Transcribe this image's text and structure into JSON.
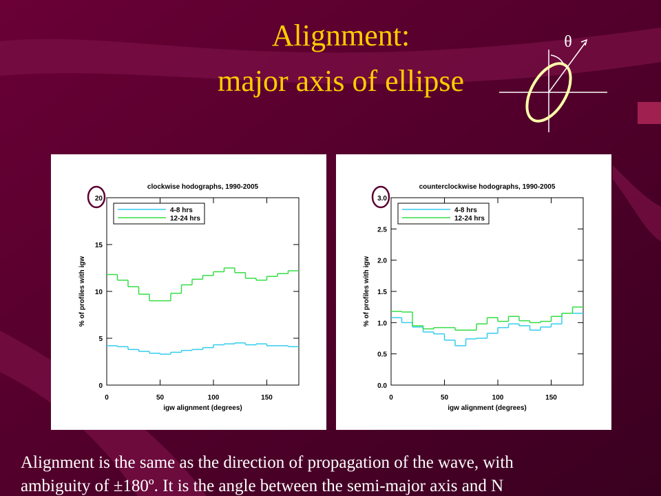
{
  "title": {
    "lines": [
      "Alignment:",
      "major axis of ellipse"
    ]
  },
  "diagram": {
    "angle_label": "θ"
  },
  "text": {
    "lines": [
      "Alignment is the same as the direction of propagation of the wave, with",
      "ambiguity of ±180º. It is the angle between the semi-major axis and N"
    ]
  },
  "chart_data": [
    {
      "type": "histogram",
      "title": "clockwise hodographs, 1990-2005",
      "x_label": "igw alignment (degrees)",
      "y_label": "% of profiles with igw",
      "bins": [
        0,
        10,
        20,
        30,
        40,
        50,
        60,
        70,
        80,
        90,
        100,
        110,
        120,
        130,
        140,
        150,
        160,
        170,
        180
      ],
      "series": [
        {
          "name": "4-8 hrs",
          "color": "#33ccee",
          "values": [
            4.2,
            4.1,
            3.8,
            3.6,
            3.4,
            3.3,
            3.5,
            3.7,
            3.8,
            4.0,
            4.3,
            4.4,
            4.5,
            4.3,
            4.4,
            4.2,
            4.2,
            4.1
          ]
        },
        {
          "name": "12-24 hrs",
          "color": "#33dd44",
          "values": [
            11.8,
            11.2,
            10.5,
            9.7,
            9.0,
            9.0,
            9.8,
            10.7,
            11.3,
            11.7,
            12.1,
            12.5,
            12.0,
            11.4,
            11.2,
            11.6,
            11.9,
            12.2
          ]
        }
      ],
      "xlim": [
        0,
        180
      ],
      "xticks": [
        0,
        50,
        100,
        150
      ],
      "ylim": [
        0,
        20
      ],
      "yticks": [
        0,
        5,
        10,
        15,
        20
      ],
      "legend": "upper left"
    },
    {
      "type": "histogram",
      "title": "counterclockwise hodographs, 1990-2005",
      "x_label": "igw alignment (degrees)",
      "y_label": "% of profiles with igw",
      "bins": [
        0,
        10,
        20,
        30,
        40,
        50,
        60,
        70,
        80,
        90,
        100,
        110,
        120,
        130,
        140,
        150,
        160,
        170,
        180
      ],
      "series": [
        {
          "name": "4-8 hrs",
          "color": "#33ccee",
          "values": [
            1.08,
            1.0,
            0.93,
            0.85,
            0.82,
            0.72,
            0.63,
            0.74,
            0.75,
            0.83,
            0.92,
            0.98,
            0.95,
            0.88,
            0.93,
            0.98,
            1.15,
            1.15
          ]
        },
        {
          "name": "12-24 hrs",
          "color": "#33dd44",
          "values": [
            1.18,
            1.17,
            0.95,
            0.9,
            0.92,
            0.92,
            0.88,
            0.88,
            0.98,
            1.08,
            1.02,
            1.1,
            1.03,
            1.0,
            1.02,
            1.1,
            1.15,
            1.25
          ]
        }
      ],
      "xlim": [
        0,
        180
      ],
      "xticks": [
        0,
        50,
        100,
        150
      ],
      "ylim": [
        0,
        3
      ],
      "yticks": [
        {
          "value": 0,
          "label": "0.0"
        },
        0.5,
        {
          "value": 1,
          "label": "1.0"
        },
        1.5,
        {
          "value": 2,
          "label": "2.0"
        },
        2.5,
        {
          "value": 3,
          "label": "3.0"
        }
      ],
      "legend": "upper left"
    }
  ]
}
